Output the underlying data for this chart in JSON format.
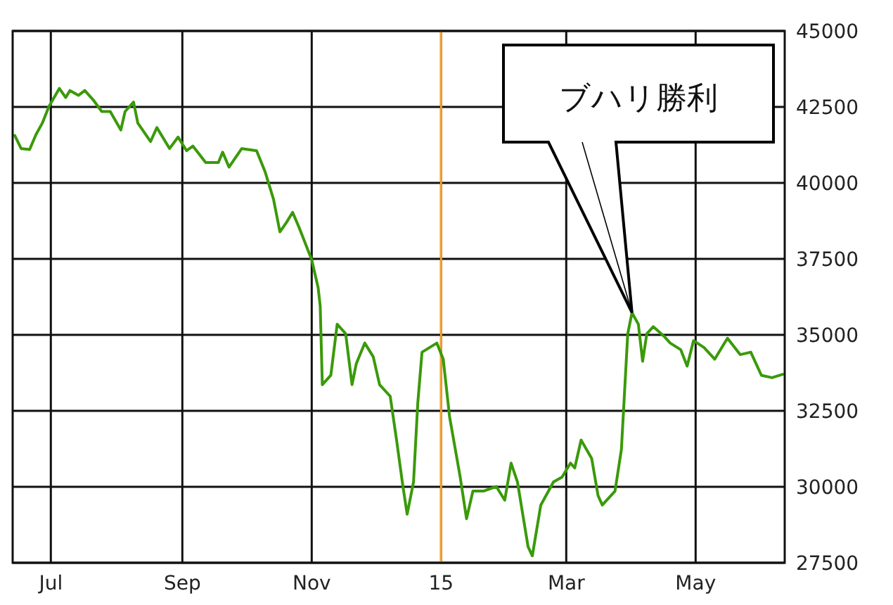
{
  "chart_data": {
    "type": "line",
    "x": [
      "2014-06-14",
      "2014-06-17",
      "2014-06-21",
      "2014-06-24",
      "2014-06-27",
      "2014-06-30",
      "2014-07-05",
      "2014-07-08",
      "2014-07-10",
      "2014-07-14",
      "2014-07-17",
      "2014-07-21",
      "2014-07-25",
      "2014-07-29",
      "2014-08-03",
      "2014-08-05",
      "2014-08-09",
      "2014-08-11",
      "2014-08-17",
      "2014-08-20",
      "2014-08-26",
      "2014-08-30",
      "2014-09-03",
      "2014-09-06",
      "2014-09-12",
      "2014-09-18",
      "2014-09-20",
      "2014-09-23",
      "2014-09-29",
      "2014-10-06",
      "2014-10-10",
      "2014-10-14",
      "2014-10-17",
      "2014-10-20",
      "2014-10-23",
      "2014-10-26",
      "2014-11-01",
      "2014-11-04",
      "2014-11-05",
      "2014-11-06",
      "2014-11-10",
      "2014-11-13",
      "2014-11-17",
      "2014-11-20",
      "2014-11-22",
      "2014-11-26",
      "2014-11-30",
      "2014-12-03",
      "2014-12-08",
      "2014-12-11",
      "2014-12-14",
      "2014-12-16",
      "2014-12-19",
      "2014-12-21",
      "2014-12-23",
      "2014-12-30",
      "2015-01-02",
      "2015-01-05",
      "2015-01-10",
      "2015-01-13",
      "2015-01-16",
      "2015-01-21",
      "2015-01-27",
      "2015-01-31",
      "2015-02-03",
      "2015-02-06",
      "2015-02-11",
      "2015-02-13",
      "2015-02-17",
      "2015-02-23",
      "2015-02-27",
      "2015-03-03",
      "2015-03-05",
      "2015-03-08",
      "2015-03-13",
      "2015-03-16",
      "2015-03-18",
      "2015-03-24",
      "2015-03-27",
      "2015-03-30",
      "2015-04-01",
      "2015-04-04",
      "2015-04-06",
      "2015-04-08",
      "2015-04-11",
      "2015-04-16",
      "2015-04-19",
      "2015-04-24",
      "2015-04-27",
      "2015-04-30",
      "2015-05-05",
      "2015-05-10",
      "2015-05-16",
      "2015-05-22",
      "2015-05-27",
      "2015-06-01",
      "2015-06-06",
      "2015-06-11"
    ],
    "series": [
      {
        "color": "#3a9a0a",
        "values": [
          41560,
          41130,
          41100,
          41590,
          41970,
          42500,
          43110,
          42810,
          43040,
          42880,
          43040,
          42730,
          42350,
          42350,
          41740,
          42350,
          42660,
          41970,
          41360,
          41820,
          41130,
          41510,
          41060,
          41210,
          40670,
          40670,
          41010,
          40520,
          41130,
          41060,
          40370,
          39460,
          38390,
          38690,
          39030,
          38540,
          37470,
          36560,
          35950,
          33360,
          33670,
          35350,
          35040,
          33360,
          34050,
          34730,
          34280,
          33360,
          32980,
          31540,
          30010,
          29100,
          30160,
          32750,
          34430,
          34730,
          34200,
          32300,
          30320,
          28950,
          29860,
          29860,
          30010,
          29560,
          30780,
          30160,
          28030,
          27730,
          29400,
          30160,
          30320,
          30780,
          30620,
          31540,
          30930,
          29710,
          29400,
          29860,
          31230,
          35040,
          35730,
          35350,
          34130,
          35040,
          35270,
          34960,
          34730,
          34510,
          33970,
          34810,
          34580,
          34200,
          34890,
          34350,
          34430,
          33670,
          33590,
          33700
        ]
      }
    ],
    "xlim": [
      "2014-06-13",
      "2015-06-12"
    ],
    "xticks": [
      {
        "value": "2014-07-01",
        "label": "Jul"
      },
      {
        "value": "2014-09-01",
        "label": "Sep"
      },
      {
        "value": "2014-11-01",
        "label": "Nov"
      },
      {
        "value": "2015-01-01",
        "label": "15"
      },
      {
        "value": "2015-03-01",
        "label": "Mar"
      },
      {
        "value": "2015-05-01",
        "label": "May"
      }
    ],
    "ylim": [
      27500,
      45000
    ],
    "yticks": [
      27500,
      30000,
      32500,
      35000,
      37500,
      40000,
      42500,
      45000
    ],
    "grid": true,
    "marker": "none",
    "line_style": "solid",
    "ref_lines": [
      {
        "axis": "x",
        "value": "2015-01-01",
        "color": "#f7a128"
      }
    ],
    "annotations": [
      {
        "text": "ブハリ勝利",
        "x": "2015-04-01",
        "y": 35730
      }
    ]
  }
}
